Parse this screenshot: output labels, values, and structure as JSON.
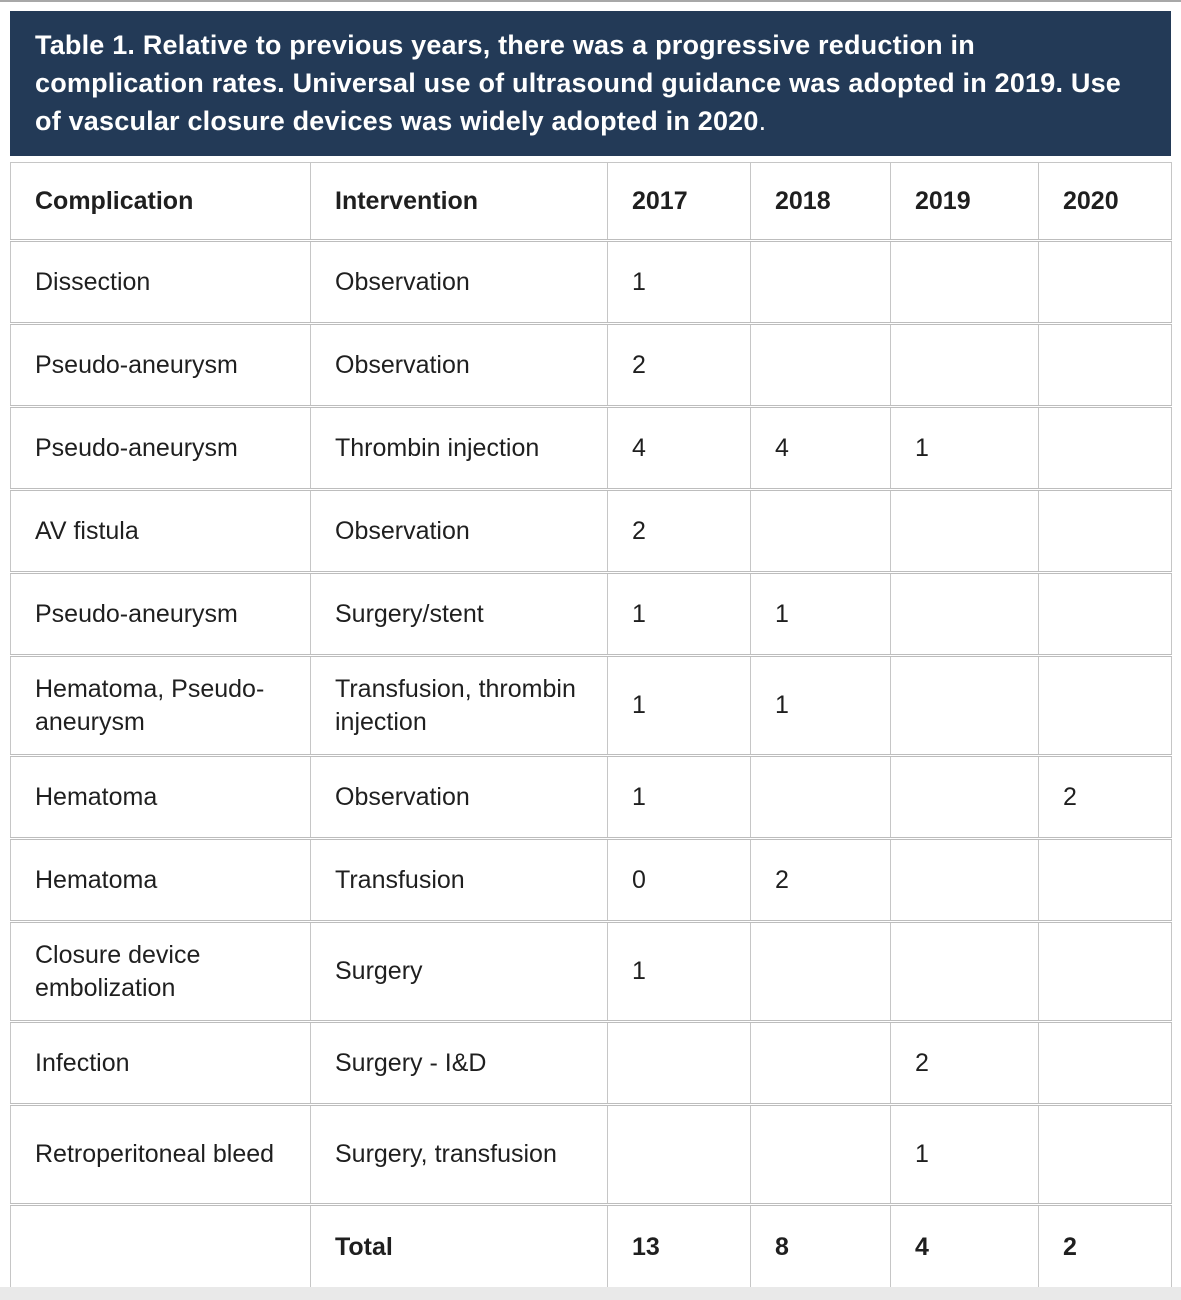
{
  "caption": {
    "bold_text": "Table 1. Relative to previous years, there was a progressive reduction in complication rates. Universal use of ultrasound guidance was adopted in 2019. Use of vascular closure devices was widely adopted in 2020",
    "suffix": "."
  },
  "table": {
    "columns": [
      "Complication",
      "Intervention",
      "2017",
      "2018",
      "2019",
      "2020"
    ],
    "rows": [
      {
        "complication": "Dissection",
        "intervention": "Observation",
        "values": [
          "1",
          "",
          "",
          ""
        ],
        "tall": false
      },
      {
        "complication": "Pseudo-aneurysm",
        "intervention": "Observation",
        "values": [
          "2",
          "",
          "",
          ""
        ],
        "tall": false
      },
      {
        "complication": "Pseudo-aneurysm",
        "intervention": "Thrombin injection",
        "values": [
          "4",
          "4",
          "1",
          ""
        ],
        "tall": false
      },
      {
        "complication": "AV fistula",
        "intervention": "Observation",
        "values": [
          "2",
          "",
          "",
          ""
        ],
        "tall": false
      },
      {
        "complication": "Pseudo-aneurysm",
        "intervention": "Surgery/stent",
        "values": [
          "1",
          "1",
          "",
          ""
        ],
        "tall": false
      },
      {
        "complication": "Hematoma, Pseudo-aneurysm",
        "intervention": "Transfusion, thrombin injection",
        "values": [
          "1",
          "1",
          "",
          ""
        ],
        "tall": true
      },
      {
        "complication": "Hematoma",
        "intervention": "Observation",
        "values": [
          "1",
          "",
          "",
          "2"
        ],
        "tall": false
      },
      {
        "complication": "Hematoma",
        "intervention": "Transfusion",
        "values": [
          "0",
          "2",
          "",
          ""
        ],
        "tall": false
      },
      {
        "complication": "Closure device embolization",
        "intervention": "Surgery",
        "values": [
          "1",
          "",
          "",
          ""
        ],
        "tall": true
      },
      {
        "complication": "Infection",
        "intervention": "Surgery - I&D",
        "values": [
          "",
          "",
          "2",
          ""
        ],
        "tall": false
      },
      {
        "complication": "Retroperitoneal bleed",
        "intervention": "Surgery, transfusion",
        "values": [
          "",
          "",
          "1",
          ""
        ],
        "tall": true
      }
    ],
    "total_row": {
      "complication": "",
      "label": "Total",
      "values": [
        "13",
        "8",
        "4",
        "2"
      ]
    }
  },
  "colors": {
    "caption_background": "#233a57",
    "caption_text": "#ffffff",
    "table_border": "#c6c6c6",
    "table_text": "#1f1f1f",
    "bottom_strip": "#e9e9e9"
  }
}
